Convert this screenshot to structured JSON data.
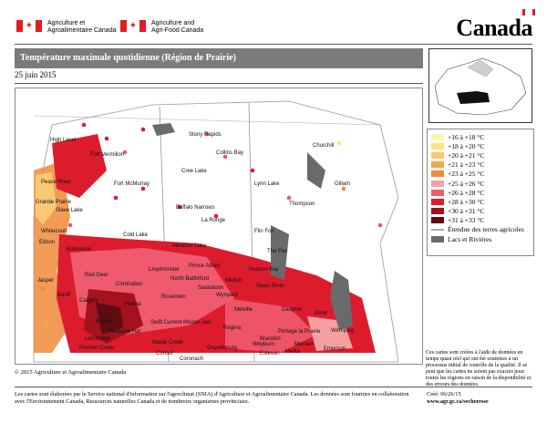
{
  "header": {
    "dept_fr_line1": "Agriculture et",
    "dept_fr_line2": "Agroalimentaire Canada",
    "dept_en_line1": "Agriculture and",
    "dept_en_line2": "Agri-Food Canada",
    "wordmark": "Canada"
  },
  "title": "Température maximale quotidienne (Région de Prairie)",
  "date": "25 juin 2015",
  "map": {
    "places": [
      "High Level",
      "Fort Vermilion",
      "Peace River",
      "Fort McMurray",
      "Grande Prairie",
      "Slave Lake",
      "Whitecourt",
      "Edson",
      "Edmonton",
      "Jasper",
      "Red Deer",
      "Banff",
      "Calgary",
      "Brooks",
      "Medicine Hat",
      "Lethbridge",
      "Pincher Creek",
      "Coronation",
      "Hanna",
      "Lloydminster",
      "North Battleford",
      "Rosetown",
      "Saskatoon",
      "Wynyard",
      "Melfort",
      "Prince Albert",
      "Meadow Lake",
      "Cold Lake",
      "Swift Current",
      "Moose Jaw",
      "Regina",
      "Maple Creek",
      "Consul",
      "Coronach",
      "Gravelbourg",
      "Weyburn",
      "Estevan",
      "Melita",
      "Brandon",
      "Morden",
      "Emerson",
      "Winnipeg",
      "Portage la Prairie",
      "Dauphin",
      "The Pas",
      "Flin Fon",
      "Lynn Lake",
      "Thompson",
      "Gillam",
      "Churchill",
      "Collins Bay",
      "Stony Rapids",
      "Cree Lake",
      "Buffalo Narrows",
      "La Ronge",
      "Hudson Bay",
      "Swan River",
      "Gimli",
      "Melville"
    ],
    "temperature_classes": [
      "+16 à +18 °C",
      "+18 à +20 °C",
      "+20 à +21 °C",
      "+21 à +23 °C",
      "+23 à +25 °C",
      "+25 à +26 °C",
      "+26 à +28 °C",
      "+28 à +30 °C",
      "+30 à +31 °C",
      "+31 à +33 °C"
    ]
  },
  "legend": {
    "items": [
      {
        "label": "+16 à +18 °C",
        "color": "#fff6a8"
      },
      {
        "label": "+18 à +20 °C",
        "color": "#fde37a"
      },
      {
        "label": "+20 à +21 °C",
        "color": "#fbc873"
      },
      {
        "label": "+21 à +23 °C",
        "color": "#f7a64b"
      },
      {
        "label": "+23 à +25 °C",
        "color": "#f08a3a"
      },
      {
        "label": "+25 à +26 °C",
        "color": "#f6a1a1"
      },
      {
        "label": "+26 à +28 °C",
        "color": "#f05a6e"
      },
      {
        "label": "+28 à +30 °C",
        "color": "#dc1c2d"
      },
      {
        "label": "+30 à +31 °C",
        "color": "#a3121e"
      },
      {
        "label": "+31 à +33 °C",
        "color": "#5e0c12"
      }
    ],
    "agri_extent_label": "Étendue des terres agricoles",
    "lakes_label": "Lacs et Rivières"
  },
  "colors": {
    "title_bar": "#7b7b7b",
    "lake_gray": "#6a6a6a",
    "flag_red": "#e31b23"
  },
  "note": "Ces cartes sont créées à l'aide de données en temps quasi réel qui ont été soumises à un processus initial de contrôle de la qualité. Il se peut que les cartes ne soient pas exactes pour toutes les régions en raison de la disponibilité et des erreurs des données.",
  "copyright": "© 2015 Agriculture et Agroalimentaire Canada",
  "footer": "Les cartes sont élaborées par le Service national d'information sur l'agroclimat (SNIA) d'Agriculture et Agroalimentaire Canada. Les données sont fournies en collaboration avec l'Environnement Canada, Ressources naturelles Canada et de nombreux organismes provinciaux.",
  "created": {
    "line1": "Créé: 06/26/15",
    "line2": "www.agr.gc.ca/secheresse"
  }
}
